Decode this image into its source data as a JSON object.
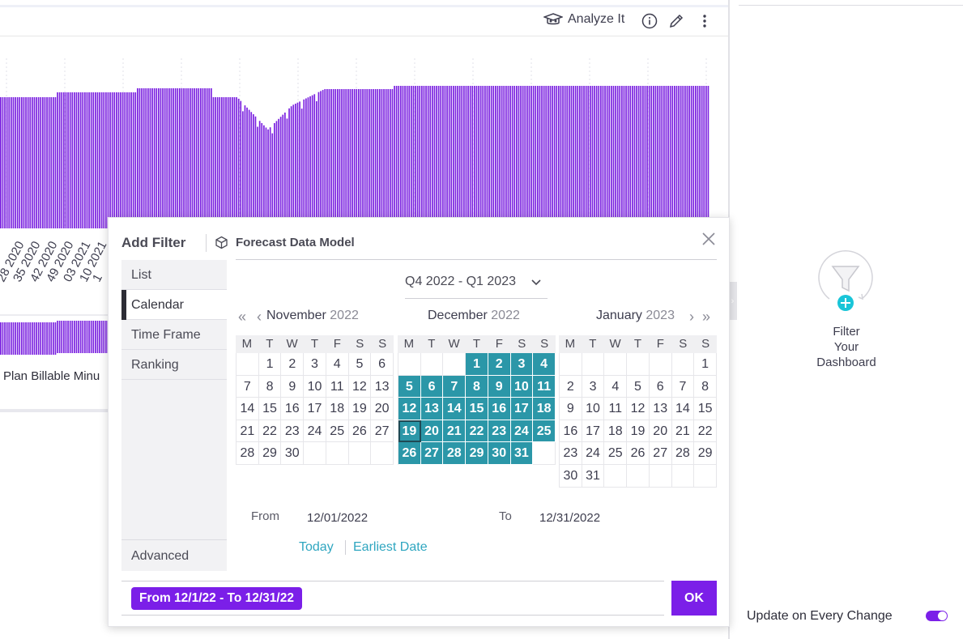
{
  "toolbar": {
    "analyze_label": "Analyze It",
    "icons": [
      "graduation-cap-icon",
      "info-icon",
      "pencil-icon",
      "kebab-menu-icon"
    ]
  },
  "chart": {
    "x_labels": [
      "20",
      "28 2020",
      "35 2020",
      "42 2020",
      "49 2020",
      "03 2021",
      "10 2021",
      "1"
    ],
    "legend_label": "Plan Billable Minu",
    "bar_color": "#7b22e0"
  },
  "right_panel": {
    "filter_caption_line1": "Filter",
    "filter_caption_line2": "Your",
    "filter_caption_line3": "Dashboard",
    "update_label": "Update on Every Change",
    "update_enabled": true,
    "accent_color": "#7b1fe8"
  },
  "dialog": {
    "title": "Add Filter",
    "model_name": "Forecast Data Model",
    "tabs": [
      "List",
      "Calendar",
      "Time Frame",
      "Ranking"
    ],
    "active_tab": "Calendar",
    "advanced_tab": "Advanced",
    "period": "Q4 2022 - Q1 2023",
    "weekday_headers": [
      "M",
      "T",
      "W",
      "T",
      "F",
      "S",
      "S"
    ],
    "months": [
      {
        "name": "November",
        "year": "2022",
        "cells": [
          "",
          "1",
          "2",
          "3",
          "4",
          "5",
          "6",
          "7",
          "8",
          "9",
          "10",
          "11",
          "12",
          "13",
          "14",
          "15",
          "16",
          "17",
          "18",
          "19",
          "20",
          "21",
          "22",
          "23",
          "24",
          "25",
          "26",
          "27",
          "28",
          "29",
          "30",
          "",
          "",
          "",
          ""
        ],
        "selected": []
      },
      {
        "name": "December",
        "year": "2022",
        "cells": [
          "",
          "",
          "",
          "1",
          "2",
          "3",
          "4",
          "5",
          "6",
          "7",
          "8",
          "9",
          "10",
          "11",
          "12",
          "13",
          "14",
          "15",
          "16",
          "17",
          "18",
          "19",
          "20",
          "21",
          "22",
          "23",
          "24",
          "25",
          "26",
          "27",
          "28",
          "29",
          "30",
          "31",
          ""
        ],
        "selected": [
          "1",
          "2",
          "3",
          "4",
          "5",
          "6",
          "7",
          "8",
          "9",
          "10",
          "11",
          "12",
          "13",
          "14",
          "15",
          "16",
          "17",
          "18",
          "19",
          "20",
          "21",
          "22",
          "23",
          "24",
          "25",
          "26",
          "27",
          "28",
          "29",
          "30",
          "31"
        ],
        "focused": "19"
      },
      {
        "name": "January",
        "year": "2023",
        "cells": [
          "",
          "",
          "",
          "",
          "",
          "",
          "1",
          "2",
          "3",
          "4",
          "5",
          "6",
          "7",
          "8",
          "9",
          "10",
          "11",
          "12",
          "13",
          "14",
          "15",
          "16",
          "17",
          "18",
          "19",
          "20",
          "21",
          "22",
          "23",
          "24",
          "25",
          "26",
          "27",
          "28",
          "29",
          "30",
          "31",
          "",
          "",
          "",
          "",
          ""
        ],
        "selected": []
      }
    ],
    "from_label": "From",
    "from_value": "12/01/2022",
    "to_label": "To",
    "to_value": "12/31/2022",
    "today_link": "Today",
    "earliest_link": "Earliest Date",
    "summary_chip": "From 12/1/22 - To 12/31/22",
    "ok_label": "OK",
    "selection_color": "#2b97a8"
  }
}
